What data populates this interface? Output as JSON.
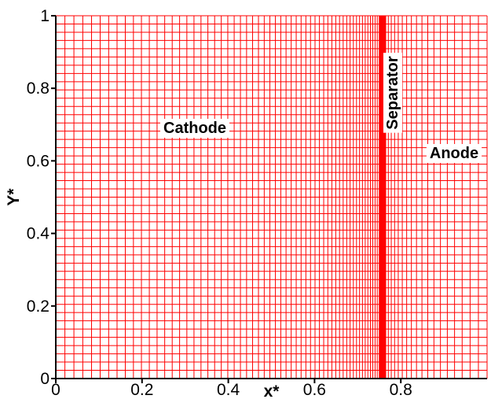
{
  "chart_data": {
    "type": "grid",
    "xlabel": "x*",
    "ylabel": "Y*",
    "xlim": [
      0,
      1
    ],
    "ylim": [
      0,
      1
    ],
    "x_ticks": [
      "0",
      "0.2",
      "0.4",
      "0.6",
      "0.8"
    ],
    "y_ticks": [
      "0",
      "0.2",
      "0.4",
      "0.6",
      "0.8",
      "1"
    ],
    "regions": [
      {
        "label": "Cathode",
        "x_range": [
          0,
          0.75
        ]
      },
      {
        "label": "Separator",
        "x_range": [
          0.75,
          0.765
        ]
      },
      {
        "label": "Anode",
        "x_range": [
          0.765,
          1
        ]
      }
    ],
    "mesh": {
      "horizontal_lines": 44,
      "cathode_lines": 58,
      "separator_lines": 12,
      "anode_lines": 18,
      "cathode_first_spacing": 0.018,
      "cathode_last_spacing": 0.004,
      "anode_first_spacing": 0.006,
      "anode_last_spacing": 0.02
    },
    "colors": {
      "grid": "#ff0000",
      "axes": "#000000",
      "label_background": "#ffffff"
    }
  }
}
